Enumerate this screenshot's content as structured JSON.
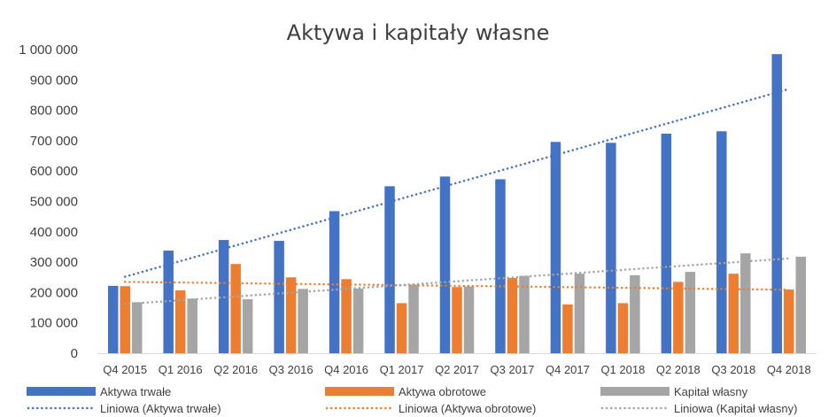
{
  "chart_data": {
    "type": "bar",
    "title": "Aktywa i kapitały własne",
    "xlabel": "",
    "ylabel": "",
    "ylim": [
      0,
      1000000
    ],
    "yticks": [
      0,
      100000,
      200000,
      300000,
      400000,
      500000,
      600000,
      700000,
      800000,
      900000,
      1000000
    ],
    "ytick_labels": [
      "0",
      "100 000",
      "200 000",
      "300 000",
      "400 000",
      "500 000",
      "600 000",
      "700 000",
      "800 000",
      "900 000",
      "1 000 000"
    ],
    "grid": false,
    "legend_position": "bottom",
    "categories": [
      "Q4 2015",
      "Q1 2016",
      "Q2 2016",
      "Q3 2016",
      "Q4 2016",
      "Q1 2017",
      "Q2 2017",
      "Q3 2017",
      "Q4 2017",
      "Q1 2018",
      "Q2 2018",
      "Q3 2018",
      "Q4 2018"
    ],
    "series": [
      {
        "name": "Aktywa trwałe",
        "color": "#4472C4",
        "values": [
          222000,
          338000,
          373000,
          370000,
          468000,
          550000,
          582000,
          573000,
          696000,
          693000,
          723000,
          731000,
          985000
        ]
      },
      {
        "name": "Aktywa obrotowe",
        "color": "#ED7D31",
        "values": [
          221000,
          207000,
          294000,
          250000,
          244000,
          165000,
          218000,
          248000,
          161000,
          165000,
          235000,
          262000,
          210000
        ]
      },
      {
        "name": "Kapitał własny",
        "color": "#A5A5A5",
        "values": [
          168000,
          180000,
          178000,
          212000,
          213000,
          226000,
          220000,
          255000,
          262000,
          257000,
          268000,
          329000,
          318000
        ]
      }
    ],
    "trendlines": [
      {
        "name": "Liniowa (Aktywa trwałe)",
        "color": "#4472C4",
        "start": 252000,
        "end": 870000
      },
      {
        "name": "Liniowa (Aktywa obrotowe)",
        "color": "#ED7D31",
        "start": 235000,
        "end": 209000
      },
      {
        "name": "Liniowa (Kapitał własny)",
        "color": "#A5A5A5",
        "start": 162000,
        "end": 312000
      }
    ]
  }
}
